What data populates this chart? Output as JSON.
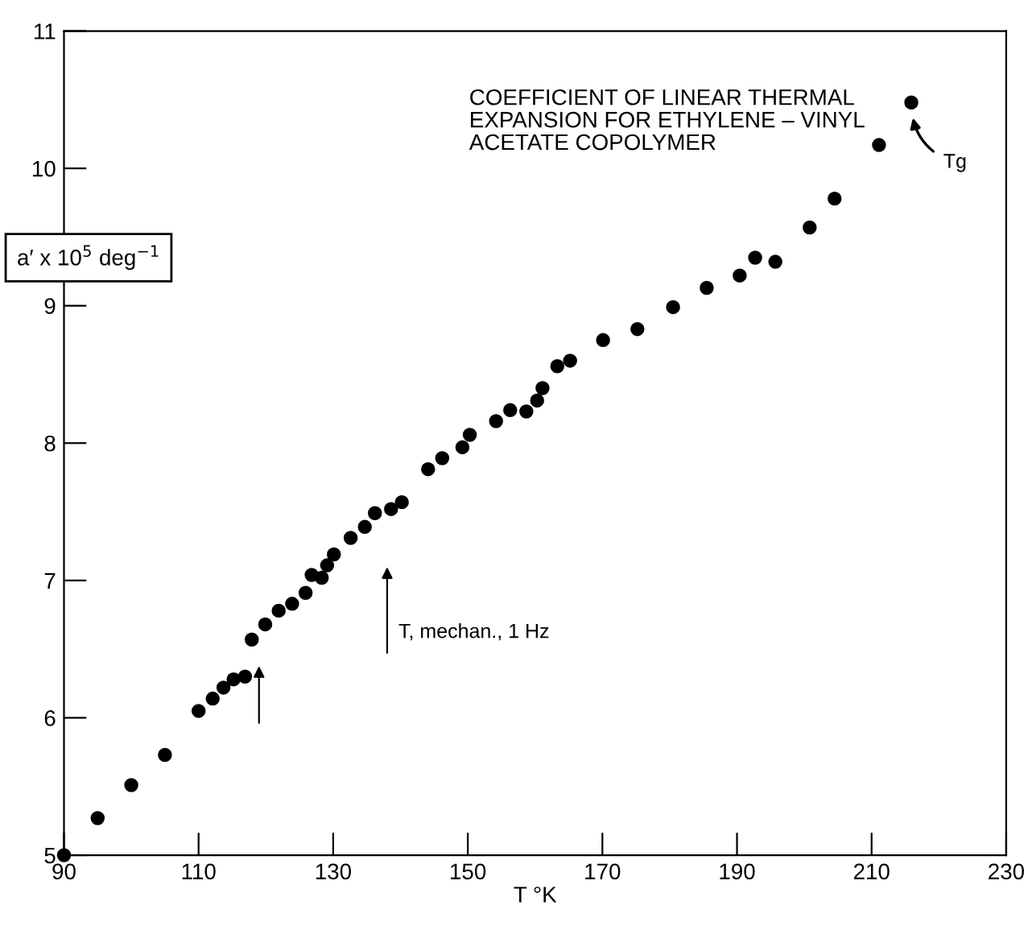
{
  "chart_data": {
    "type": "scatter",
    "title": "COEFFICIENT OF LINEAR THERMAL\nEXPANSION FOR ETHYLENE – VINYL\nACETATE COPOLYMER",
    "xlabel": "T °K",
    "ylabel": "a′ x 10$^{5}$ deg$^{−1}$",
    "x": [
      90,
      95,
      100,
      105,
      110,
      112.1,
      113.7,
      115.2,
      116.9,
      117.9,
      119.9,
      121.9,
      123.9,
      125.9,
      126.8,
      128.3,
      129.1,
      130.1,
      132.6,
      134.7,
      136.2,
      138.6,
      140.2,
      144.1,
      146.2,
      149.2,
      150.3,
      154.2,
      156.3,
      158.7,
      160.3,
      161.1,
      163.3,
      165.2,
      170.1,
      175.2,
      180.5,
      185.5,
      190.4,
      192.7,
      195.7,
      200.8,
      204.5,
      211.1,
      215.9
    ],
    "series": [
      {
        "color": "#000000",
        "values": [
          5.0,
          5.27,
          5.51,
          5.73,
          6.05,
          6.14,
          6.22,
          6.28,
          6.3,
          6.57,
          6.68,
          6.78,
          6.83,
          6.91,
          7.04,
          7.02,
          7.11,
          7.19,
          7.31,
          7.39,
          7.49,
          7.52,
          7.57,
          7.81,
          7.89,
          7.97,
          8.06,
          8.16,
          8.24,
          8.23,
          8.31,
          8.4,
          8.56,
          8.6,
          8.75,
          8.83,
          8.99,
          9.13,
          9.22,
          9.35,
          9.32,
          9.57,
          9.78,
          10.17,
          10.48
        ]
      }
    ],
    "annotations": [
      "T, mechan., 1 Hz",
      {
        "text": "Tg",
        "x": 216,
        "y": 10.4
      }
    ],
    "xlim": [
      90,
      230
    ],
    "ylim": [
      5,
      11
    ],
    "xticks": [
      90,
      110,
      130,
      150,
      170,
      190,
      210,
      230
    ],
    "yticks": [
      5,
      6,
      7,
      8,
      9,
      10,
      11
    ],
    "marker": "circle",
    "grid": false,
    "legend": false
  }
}
